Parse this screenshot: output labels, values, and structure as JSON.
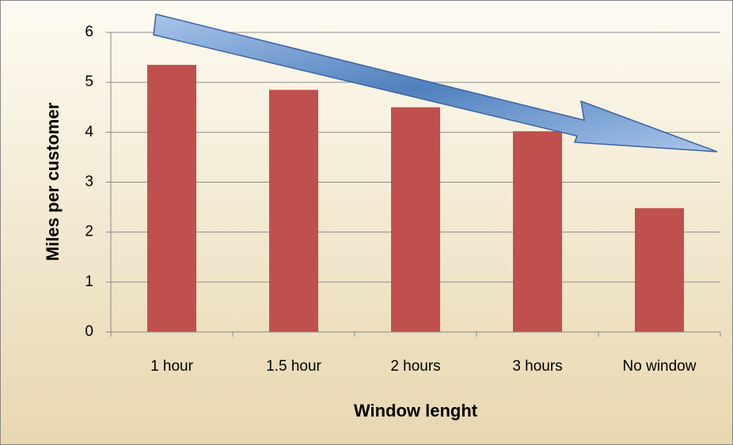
{
  "chart_data": {
    "type": "bar",
    "categories": [
      "1 hour",
      "1.5 hour",
      "2 hours",
      "3 hours",
      "No window"
    ],
    "values": [
      5.35,
      4.85,
      4.5,
      4.02,
      2.48
    ],
    "color": "#c0504d",
    "xlabel": "Window lenght",
    "ylabel": "Miles per customer",
    "ylim": [
      0,
      6
    ],
    "yticks": [
      0,
      1,
      2,
      3,
      4,
      5,
      6
    ],
    "grid": true
  }
}
